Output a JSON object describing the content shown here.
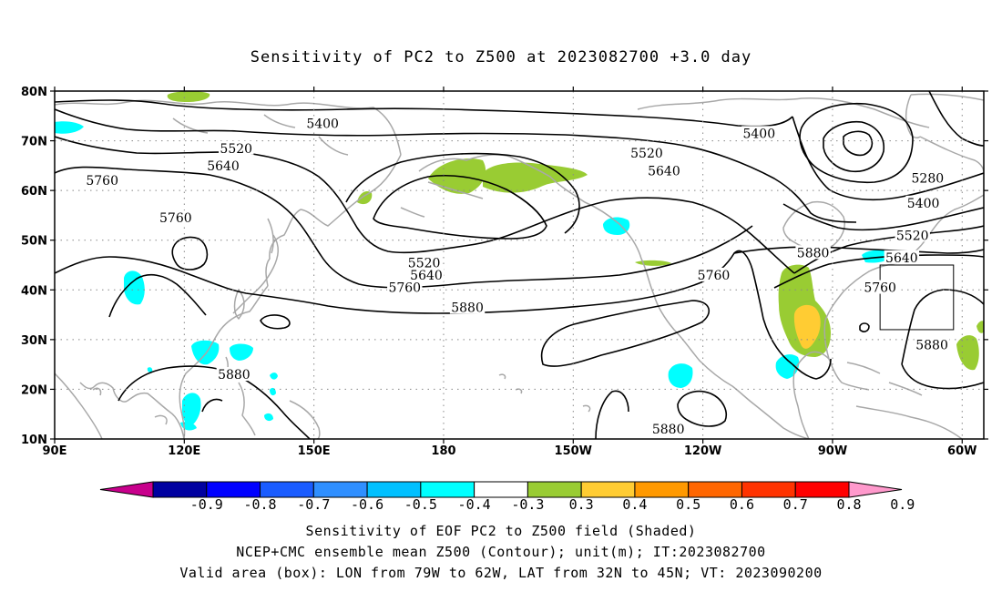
{
  "title": "Sensitivity of PC2 to Z500 at 2023082700 +3.0 day",
  "captions": [
    "Sensitivity of EOF PC2 to Z500 field (Shaded)",
    "NCEP+CMC ensemble mean Z500 (Contour); unit(m); IT:2023082700",
    "Valid area (box): LON from 79W to 62W, LAT from 32N to 45N; VT: 2023090200"
  ],
  "chart_data": {
    "type": "heatmap",
    "projection": "cylindrical-equidistant",
    "lon_range": [
      90,
      305
    ],
    "lat_range": [
      10,
      80
    ],
    "grid": "dotted",
    "x_ticks": [
      {
        "label": "90E",
        "lon": 90
      },
      {
        "label": "120E",
        "lon": 120
      },
      {
        "label": "150E",
        "lon": 150
      },
      {
        "label": "180",
        "lon": 180
      },
      {
        "label": "150W",
        "lon": 210
      },
      {
        "label": "120W",
        "lon": 240
      },
      {
        "label": "90W",
        "lon": 270
      },
      {
        "label": "60W",
        "lon": 300
      }
    ],
    "y_ticks": [
      {
        "label": "10N",
        "lat": 10
      },
      {
        "label": "20N",
        "lat": 20
      },
      {
        "label": "30N",
        "lat": 30
      },
      {
        "label": "40N",
        "lat": 40
      },
      {
        "label": "50N",
        "lat": 50
      },
      {
        "label": "60N",
        "lat": 60
      },
      {
        "label": "70N",
        "lat": 70
      },
      {
        "label": "80N",
        "lat": 80
      }
    ],
    "valid_box": {
      "lon": [
        281,
        298
      ],
      "lat": [
        32,
        45
      ]
    },
    "contour_labels": [
      {
        "text": "5400",
        "lon": 152,
        "lat": 73.5
      },
      {
        "text": "5400",
        "lon": 253,
        "lat": 71.5
      },
      {
        "text": "5520",
        "lon": 132,
        "lat": 68.5
      },
      {
        "text": "5520",
        "lon": 227,
        "lat": 67.5
      },
      {
        "text": "5640",
        "lon": 129,
        "lat": 65
      },
      {
        "text": "5640",
        "lon": 231,
        "lat": 64
      },
      {
        "text": "5760",
        "lon": 101,
        "lat": 62
      },
      {
        "text": "5760",
        "lon": 118,
        "lat": 54.5
      },
      {
        "text": "5280",
        "lon": 292,
        "lat": 62.5
      },
      {
        "text": "5400",
        "lon": 291,
        "lat": 57.5
      },
      {
        "text": "5520",
        "lon": 288.5,
        "lat": 51
      },
      {
        "text": "5640",
        "lon": 286,
        "lat": 46.5
      },
      {
        "text": "5760",
        "lon": 281,
        "lat": 40.5
      },
      {
        "text": "5880",
        "lon": 265.5,
        "lat": 47.5
      },
      {
        "text": "5760",
        "lon": 242.5,
        "lat": 43
      },
      {
        "text": "5520",
        "lon": 175.5,
        "lat": 45.5
      },
      {
        "text": "5640",
        "lon": 176,
        "lat": 43
      },
      {
        "text": "5760",
        "lon": 171,
        "lat": 40.5
      },
      {
        "text": "5880",
        "lon": 185.5,
        "lat": 36.5
      },
      {
        "text": "5880",
        "lon": 131.5,
        "lat": 23
      },
      {
        "text": "5880",
        "lon": 293,
        "lat": 29
      },
      {
        "text": "5880",
        "lon": 232,
        "lat": 12
      }
    ],
    "colorbar": {
      "labels": [
        "-0.9",
        "-0.8",
        "-0.7",
        "-0.6",
        "-0.5",
        "-0.4",
        "-0.3",
        "0.3",
        "0.4",
        "0.5",
        "0.6",
        "0.7",
        "0.8",
        "0.9"
      ],
      "colors": [
        "#c8008c",
        "#0000a0",
        "#0000ff",
        "#1a5cff",
        "#2f8fff",
        "#00c0ff",
        "#00ffff",
        "#ffffff",
        "#99cc33",
        "#ffcc33",
        "#ff9900",
        "#ff6600",
        "#ff3300",
        "#ff0000",
        "#ff99cc"
      ]
    },
    "shaded_areas": [
      {
        "value": "0.3-0.4",
        "color": "#99cc33",
        "lon": 118.5,
        "lat": 78.5
      },
      {
        "value": "0.3-0.4",
        "color": "#99cc33",
        "lon": 197,
        "lat": 62
      },
      {
        "value": "0.3-0.4",
        "color": "#99cc33",
        "lon": 219,
        "lat": 62.5
      },
      {
        "value": "0.3-0.4",
        "color": "#99cc33",
        "lon": 272,
        "lat": 35
      },
      {
        "value": "0.4-0.5",
        "color": "#ffcc33",
        "lon": 279,
        "lat": 34
      },
      {
        "value": "0.3-0.4",
        "color": "#99cc33",
        "lon": 303,
        "lat": 27
      },
      {
        "value": "-0.4--0.3",
        "color": "#00ffff",
        "lon": 93.5,
        "lat": 72.5
      },
      {
        "value": "-0.4--0.3",
        "color": "#00ffff",
        "lon": 109,
        "lat": 41
      },
      {
        "value": "-0.4--0.3",
        "color": "#00ffff",
        "lon": 125,
        "lat": 28
      },
      {
        "value": "-0.4--0.3",
        "color": "#00ffff",
        "lon": 136,
        "lat": 27.5
      },
      {
        "value": "-0.4--0.3",
        "color": "#00ffff",
        "lon": 121,
        "lat": 15
      },
      {
        "value": "-0.4--0.3",
        "color": "#00ffff",
        "lon": 236,
        "lat": 51
      },
      {
        "value": "-0.4--0.3",
        "color": "#00ffff",
        "lon": 250,
        "lat": 22
      },
      {
        "value": "-0.4--0.3",
        "color": "#00ffff",
        "lon": 272,
        "lat": 23
      },
      {
        "value": "-0.4--0.3",
        "color": "#00ffff",
        "lon": 294,
        "lat": 47
      }
    ]
  }
}
